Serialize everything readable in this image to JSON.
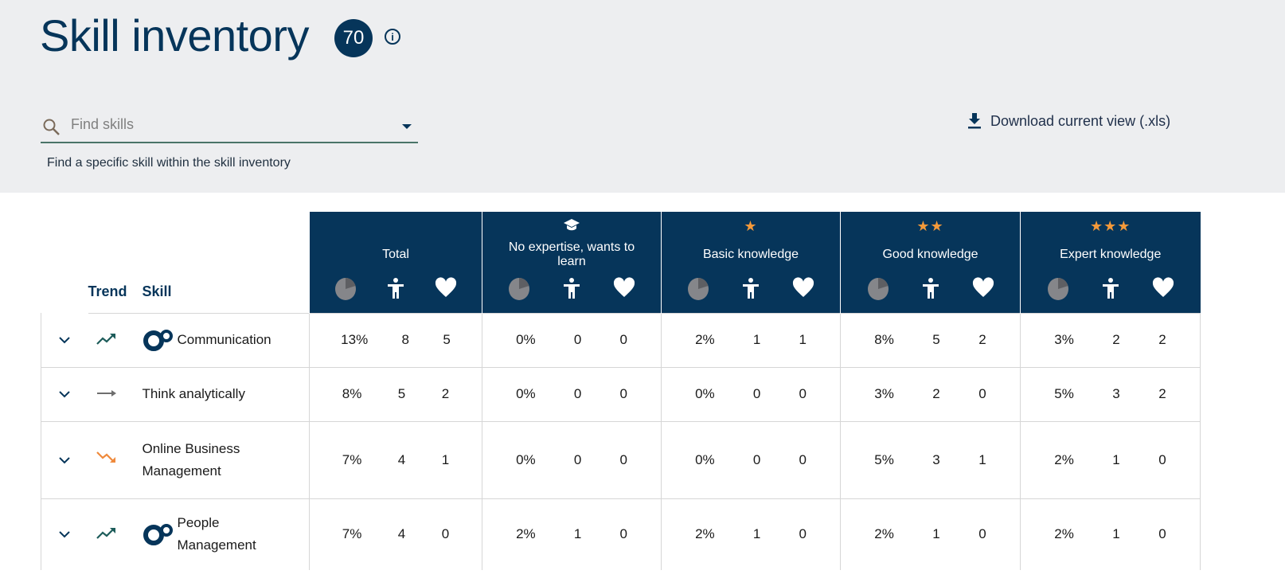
{
  "header": {
    "title": "Skill inventory",
    "count": "70",
    "info_icon": "info-icon"
  },
  "search": {
    "placeholder": "Find skills",
    "value": "",
    "hint": "Find a specific skill within the skill inventory"
  },
  "download": {
    "label": "Download current view (.xls)"
  },
  "colors": {
    "navy": "#06355a",
    "star": "#f3993a",
    "trend_up": "#1d5c5a",
    "trend_down": "#ef8a3c",
    "trend_flat": "#6e6e6e"
  },
  "table": {
    "col_trend": "Trend",
    "col_skill": "Skill",
    "groups": [
      {
        "label": "Total",
        "stars": 0,
        "icon": ""
      },
      {
        "label": "No expertise, wants to learn",
        "stars": 0,
        "icon": "graduation-cap-icon"
      },
      {
        "label": "Basic knowledge",
        "stars": 1,
        "icon": "star-icon"
      },
      {
        "label": "Good knowledge",
        "stars": 2,
        "icon": "star-icon"
      },
      {
        "label": "Expert knowledge",
        "stars": 3,
        "icon": "star-icon"
      }
    ],
    "rows": [
      {
        "skill": "Communication",
        "trend": "up",
        "logo": true,
        "values": [
          [
            "13%",
            "8",
            "5"
          ],
          [
            "0%",
            "0",
            "0"
          ],
          [
            "2%",
            "1",
            "1"
          ],
          [
            "8%",
            "5",
            "2"
          ],
          [
            "3%",
            "2",
            "2"
          ]
        ]
      },
      {
        "skill": "Think analytically",
        "trend": "flat",
        "logo": false,
        "values": [
          [
            "8%",
            "5",
            "2"
          ],
          [
            "0%",
            "0",
            "0"
          ],
          [
            "0%",
            "0",
            "0"
          ],
          [
            "3%",
            "2",
            "0"
          ],
          [
            "5%",
            "3",
            "2"
          ]
        ]
      },
      {
        "skill": "Online Business Management",
        "trend": "down",
        "logo": false,
        "values": [
          [
            "7%",
            "4",
            "1"
          ],
          [
            "0%",
            "0",
            "0"
          ],
          [
            "0%",
            "0",
            "0"
          ],
          [
            "5%",
            "3",
            "1"
          ],
          [
            "2%",
            "1",
            "0"
          ]
        ]
      },
      {
        "skill": "People Management",
        "trend": "up",
        "logo": true,
        "values": [
          [
            "7%",
            "4",
            "0"
          ],
          [
            "2%",
            "1",
            "0"
          ],
          [
            "2%",
            "1",
            "0"
          ],
          [
            "2%",
            "1",
            "0"
          ],
          [
            "2%",
            "1",
            "0"
          ]
        ]
      }
    ]
  }
}
